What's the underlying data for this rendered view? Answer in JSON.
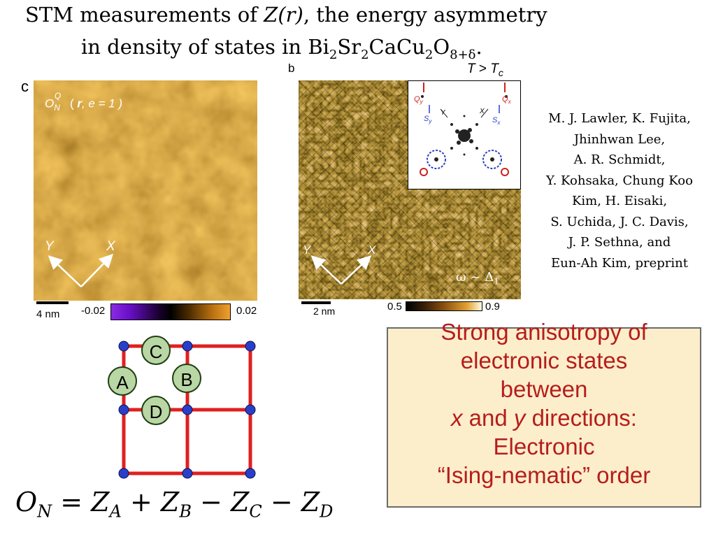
{
  "title": {
    "line1_prefix": "STM measurements of ",
    "line1_math": "Z(r)",
    "line1_suffix": ", the energy asymmetry",
    "line2_prefix": "in density of states in ",
    "line2_formula": {
      "Bi": "Bi",
      "sub1": "2",
      "Sr": "Sr",
      "sub2": "2",
      "CaCu": "CaCu",
      "sub3": "2",
      "O": "O",
      "sub4": "8+δ"
    },
    "line2_suffix": "."
  },
  "panel_c": {
    "label": "c",
    "map_label_O": "O",
    "map_label_N": "N",
    "map_label_Q": "Q",
    "map_label_args_open": " ( ",
    "map_label_r": "r",
    "map_label_args_rest": ", e = 1 )",
    "axis_y": "Y",
    "axis_x": "X",
    "scale_bar": "4 nm",
    "colorbar_min": "-0.02",
    "colorbar_max": "0.02"
  },
  "panel_b": {
    "label": "b",
    "temp_T1": "T",
    "temp_gt": " > ",
    "temp_T2": "T",
    "temp_sub": "c",
    "axis_y": "Y",
    "axis_x": "X",
    "omega_label": "ω ~ Δ",
    "omega_sub": "1",
    "scale_bar": "2 nm",
    "colorbar_min": "0.5",
    "colorbar_max": "0.9",
    "inset": {
      "Qy": "Q",
      "Qy_sub": "y",
      "Qx": "Q",
      "Qx_sub": "x",
      "Sy": "S",
      "Sy_sub": "y",
      "Sx": "S",
      "Sx_sub": "x",
      "Y": "Y",
      "X": "X"
    }
  },
  "authors": [
    "M. J. Lawler, K. Fujita,",
    "Jhinhwan Lee,",
    "A. R. Schmidt,",
    "Y. Kohsaka, Chung Koo",
    "Kim, H. Eisaki,",
    "S. Uchida, J. C. Davis,",
    "J. P. Sethna, and",
    "Eun-Ah Kim, preprint"
  ],
  "lattice": {
    "label_A": "A",
    "label_B": "B",
    "label_C": "C",
    "label_D": "D"
  },
  "equation": {
    "lhs": "O",
    "lhs_sub": "N",
    "eq": " = ",
    "t1": "Z",
    "t1_sub": "A",
    "op1": " + ",
    "t2": "Z",
    "t2_sub": "B",
    "op2": " − ",
    "t3": "Z",
    "t3_sub": "C",
    "op3": " − ",
    "t4": "Z",
    "t4_sub": "D"
  },
  "callout": {
    "line1": "Strong anisotropy of",
    "line2": "electronic states",
    "line3": "between",
    "line4_x": "x",
    "line4_mid": " and ",
    "line4_y": "y",
    "line4_rest": " directions:",
    "line5": "Electronic",
    "line6": "“Ising-nematic” order"
  },
  "colors": {
    "lattice_red": "#e02020",
    "node_blue": "#2a3fc8",
    "callout_text": "#b51d1d",
    "callout_bg": "#fdeecb"
  }
}
